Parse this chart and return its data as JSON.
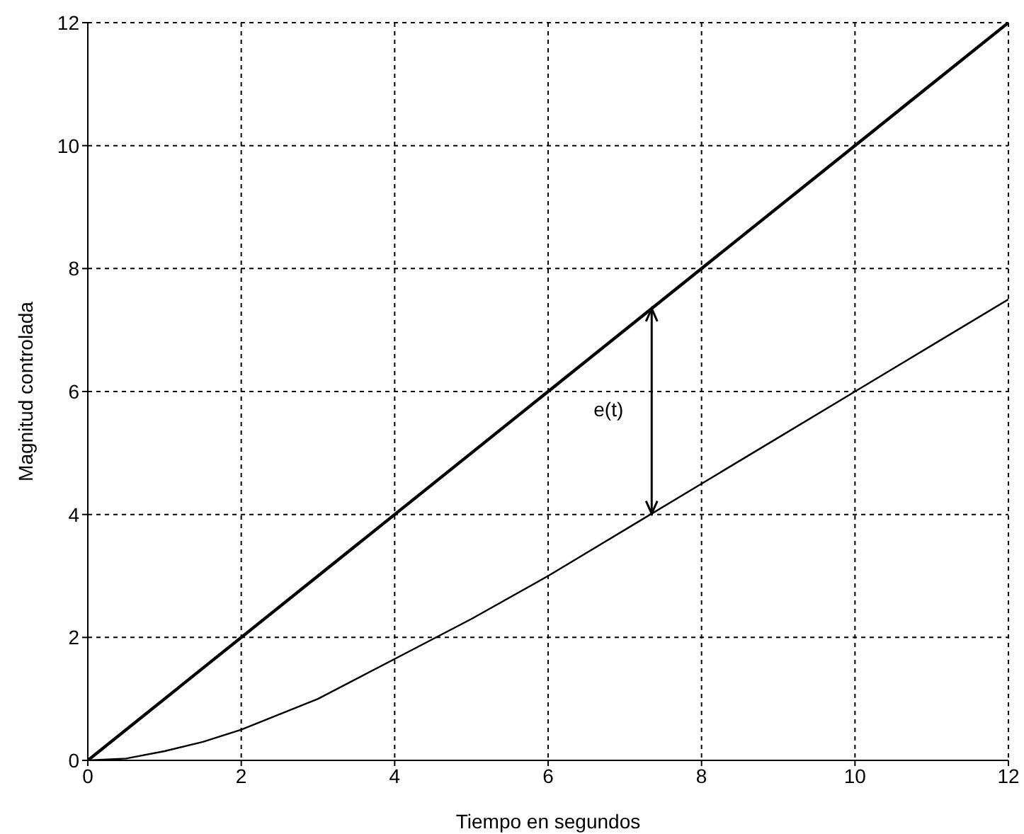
{
  "chart_data": {
    "type": "line",
    "xlabel": "Tiempo en segundos",
    "ylabel": "Magnitud controlada",
    "xlim": [
      0,
      12
    ],
    "ylim": [
      0,
      12
    ],
    "xticks": [
      0,
      2,
      4,
      6,
      8,
      10,
      12
    ],
    "yticks": [
      0,
      2,
      4,
      6,
      8,
      10,
      12
    ],
    "grid": true,
    "annotations": [
      "e(t)"
    ],
    "series": [
      {
        "color": "#000000",
        "x": [
          0,
          12
        ],
        "values": [
          0,
          12
        ]
      },
      {
        "color": "#000000",
        "x": [
          0,
          0.5,
          1,
          1.5,
          2,
          3,
          4,
          5,
          6,
          7,
          8,
          9,
          10,
          11,
          12
        ],
        "values": [
          0,
          0.03,
          0.15,
          0.3,
          0.5,
          1.0,
          1.65,
          2.3,
          3.0,
          3.75,
          4.5,
          5.25,
          6.0,
          6.75,
          7.5
        ]
      }
    ]
  }
}
